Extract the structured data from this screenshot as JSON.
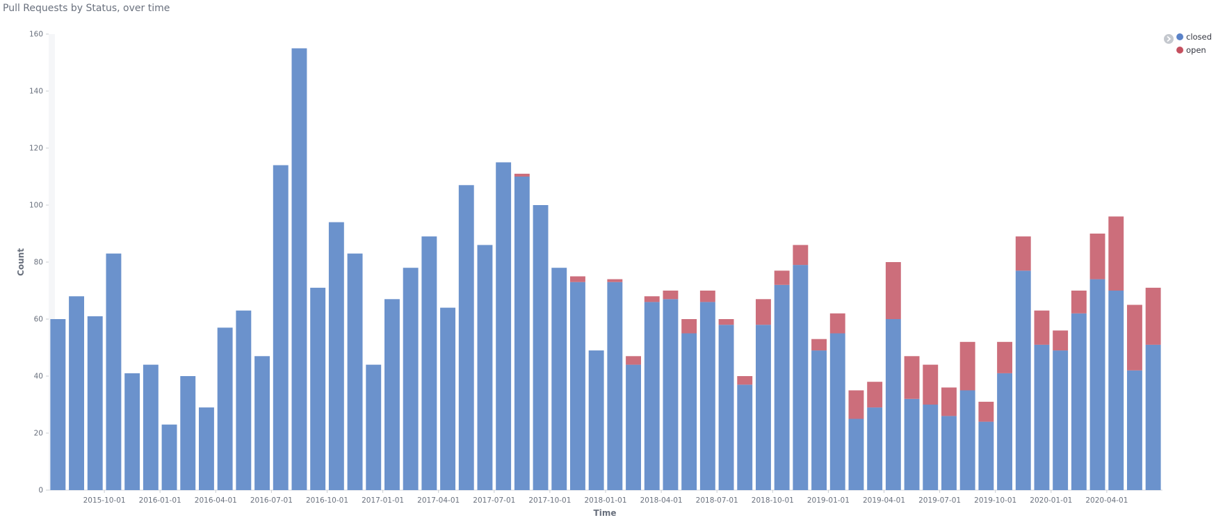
{
  "title": "Pull Requests by Status, over time",
  "legend": {
    "items": [
      {
        "label": "closed",
        "color": "#5a82c8"
      },
      {
        "label": "open",
        "color": "#c5505f"
      }
    ]
  },
  "chart_data": {
    "type": "bar",
    "stacked": true,
    "interval": "monthly",
    "title": "Pull Requests by Status, over time",
    "xlabel": "Time",
    "ylabel": "Count",
    "ylim": [
      0,
      160
    ],
    "y_ticks": [
      0,
      20,
      40,
      60,
      80,
      100,
      120,
      140,
      160
    ],
    "x_tick_labels": [
      "2015-10-01",
      "2016-01-01",
      "2016-04-01",
      "2016-07-01",
      "2016-10-01",
      "2017-01-01",
      "2017-04-01",
      "2017-07-01",
      "2017-10-01",
      "2018-01-01",
      "2018-04-01",
      "2018-07-01",
      "2018-10-01",
      "2019-01-01",
      "2019-04-01",
      "2019-07-01",
      "2019-10-01",
      "2020-01-01",
      "2020-04-01"
    ],
    "categories": [
      "2015-07",
      "2015-08",
      "2015-09",
      "2015-10",
      "2015-11",
      "2015-12",
      "2016-01",
      "2016-02",
      "2016-03",
      "2016-04",
      "2016-05",
      "2016-06",
      "2016-07",
      "2016-08",
      "2016-09",
      "2016-10",
      "2016-11",
      "2016-12",
      "2017-01",
      "2017-02",
      "2017-03",
      "2017-04",
      "2017-05",
      "2017-06",
      "2017-07",
      "2017-08",
      "2017-09",
      "2017-10",
      "2017-11",
      "2017-12",
      "2018-01",
      "2018-02",
      "2018-03",
      "2018-04",
      "2018-05",
      "2018-06",
      "2018-07",
      "2018-08",
      "2018-09",
      "2018-10",
      "2018-11",
      "2018-12",
      "2019-01",
      "2019-02",
      "2019-03",
      "2019-04",
      "2019-05",
      "2019-06",
      "2019-07",
      "2019-08",
      "2019-09",
      "2019-10",
      "2019-11",
      "2019-12",
      "2020-01",
      "2020-02",
      "2020-03",
      "2020-04",
      "2020-05",
      "2020-06"
    ],
    "series": [
      {
        "name": "closed",
        "color": "#6b92cc",
        "values": [
          60,
          68,
          61,
          83,
          41,
          44,
          23,
          40,
          29,
          57,
          63,
          47,
          114,
          155,
          71,
          94,
          83,
          44,
          67,
          78,
          89,
          64,
          107,
          86,
          115,
          110,
          100,
          78,
          73,
          49,
          73,
          44,
          66,
          67,
          55,
          66,
          58,
          37,
          58,
          72,
          79,
          49,
          55,
          25,
          29,
          60,
          32,
          30,
          26,
          35,
          24,
          41,
          77,
          51,
          49,
          62,
          74,
          70,
          42,
          51
        ]
      },
      {
        "name": "open",
        "color": "#cc6e7b",
        "values": [
          0,
          0,
          0,
          0,
          0,
          0,
          0,
          0,
          0,
          0,
          0,
          0,
          0,
          0,
          0,
          0,
          0,
          0,
          0,
          0,
          0,
          0,
          0,
          0,
          0,
          1,
          0,
          0,
          2,
          0,
          1,
          3,
          2,
          3,
          5,
          4,
          2,
          3,
          9,
          5,
          7,
          4,
          7,
          10,
          9,
          20,
          15,
          14,
          10,
          17,
          7,
          11,
          12,
          12,
          7,
          8,
          16,
          26,
          23,
          20
        ]
      }
    ],
    "legend_position": "top-right",
    "grid": false
  }
}
